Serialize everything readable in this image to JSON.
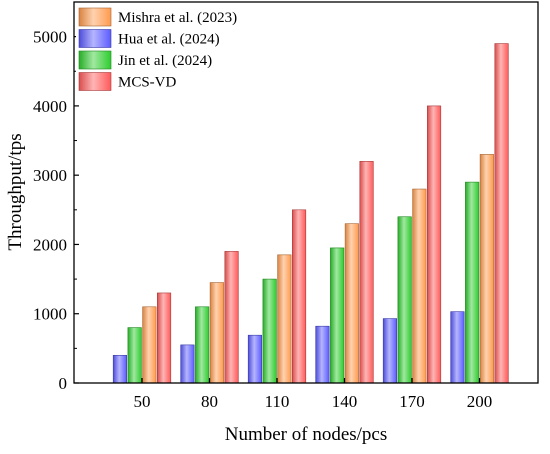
{
  "chart_data": {
    "type": "bar",
    "title": "",
    "xlabel": "Number of nodes/pcs",
    "ylabel": "Throughput/tps",
    "categories": [
      "50",
      "80",
      "110",
      "140",
      "170",
      "200"
    ],
    "ylim": [
      0,
      5500
    ],
    "yticks": [
      0,
      1000,
      2000,
      3000,
      4000,
      5000
    ],
    "grid": false,
    "legend_position": "top-left",
    "series": [
      {
        "name": "Hua et al. (2024)",
        "color": "#5b5bff",
        "values": [
          400,
          550,
          690,
          820,
          930,
          1030
        ]
      },
      {
        "name": "Jin et al. (2024)",
        "color": "#2ecc2e",
        "values": [
          800,
          1100,
          1500,
          1950,
          2400,
          2900
        ]
      },
      {
        "name": "Mishra et al. (2023)",
        "color": "#ff9a4d",
        "values": [
          1100,
          1450,
          1850,
          2300,
          2800,
          3300
        ]
      },
      {
        "name": "MCS-VD",
        "color": "#ff5a5a",
        "values": [
          1300,
          1900,
          2500,
          3200,
          4000,
          4900
        ]
      }
    ],
    "legend_order": [
      "Mishra et al. (2023)",
      "Hua et al. (2024)",
      "Jin et al. (2024)",
      "MCS-VD"
    ]
  }
}
